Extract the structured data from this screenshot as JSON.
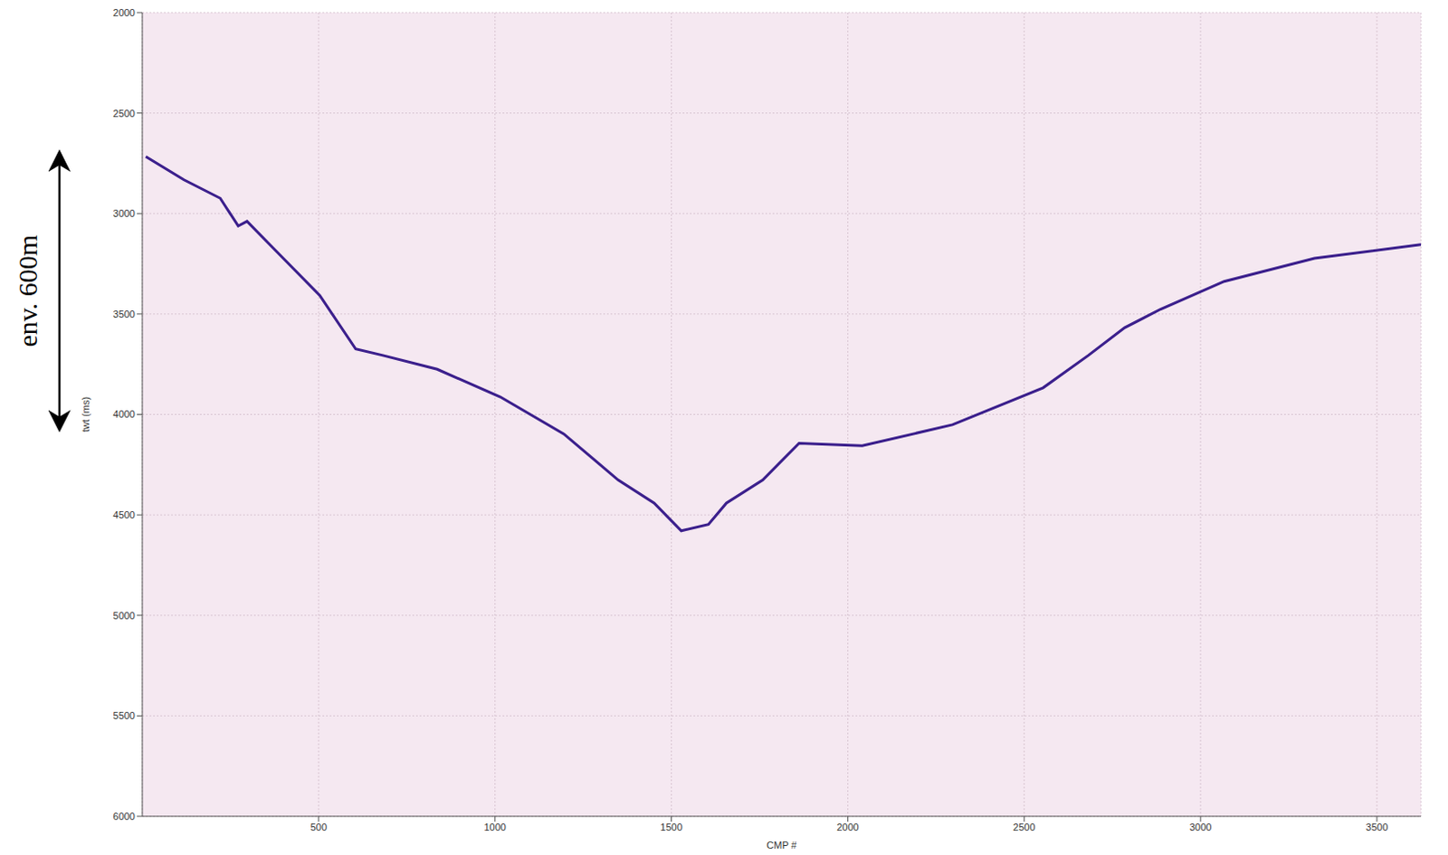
{
  "chart_data": {
    "type": "line",
    "x": [
      10,
      118,
      221,
      272,
      297,
      374,
      503,
      605,
      682,
      836,
      1015,
      1195,
      1349,
      1451,
      1528,
      1605,
      1656,
      1759,
      1862,
      2041,
      2297,
      2554,
      2682,
      2785,
      2887,
      3067,
      3323,
      3625
    ],
    "values": [
      2717,
      2832,
      2924,
      3062,
      3039,
      3177,
      3407,
      3674,
      3706,
      3775,
      3913,
      4097,
      4326,
      4441,
      4579,
      4547,
      4441,
      4326,
      4143,
      4156,
      4051,
      3867,
      3706,
      3568,
      3476,
      3338,
      3223,
      3154
    ],
    "color": "#3b1f8c",
    "xlabel": "CMP #",
    "ylabel": "twt (ms)",
    "xlim": [
      0,
      3625
    ],
    "ylim": [
      2000,
      6000
    ],
    "xticks": [
      500,
      1000,
      1500,
      2000,
      2500,
      3000,
      3500
    ],
    "yticks": [
      2000,
      2500,
      3000,
      3500,
      4000,
      4500,
      5000,
      5500,
      6000
    ],
    "grid": true,
    "annotations": [
      {
        "text": "env. 600m",
        "y": [
          2710,
          4060
        ]
      }
    ]
  }
}
